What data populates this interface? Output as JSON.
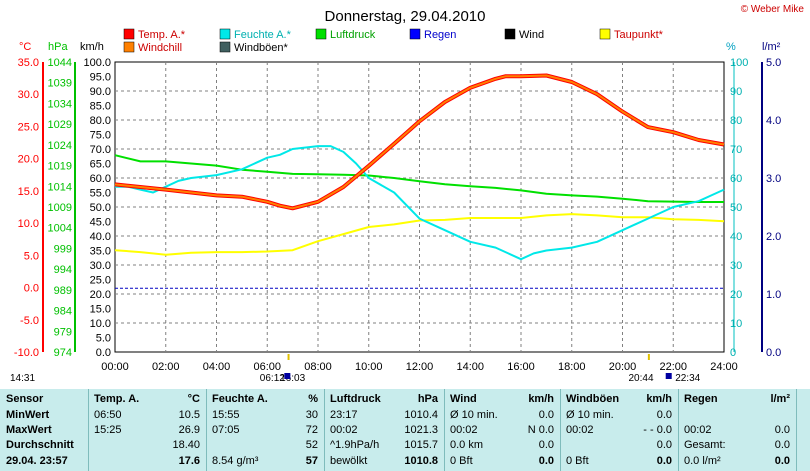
{
  "credit": "© Weber Mike",
  "chart_data": {
    "type": "line",
    "title": "Donnerstag, 29.04.2010",
    "x_ticks": [
      "00:00",
      "02:00",
      "04:00",
      "06:00",
      "08:00",
      "10:00",
      "12:00",
      "14:00",
      "16:00",
      "18:00",
      "20:00",
      "22:00",
      "24:00"
    ],
    "axes": {
      "celsius": {
        "unit": "°C",
        "color": "#ff0000",
        "ticks": [
          "35.0",
          "30.0",
          "25.0",
          "20.0",
          "15.0",
          "10.0",
          "5.0",
          "0.0",
          "-5.0",
          "-10.0"
        ]
      },
      "hpa": {
        "unit": "hPa",
        "color": "#00c000",
        "ticks": [
          "1044",
          "1039",
          "1034",
          "1029",
          "1024",
          "1019",
          "1014",
          "1009",
          "1004",
          "999",
          "994",
          "989",
          "984",
          "979",
          "974"
        ]
      },
      "kmh": {
        "unit": "km/h",
        "color": "#000000",
        "ticks": [
          "100.0",
          "95.0",
          "90.0",
          "85.0",
          "80.0",
          "75.0",
          "70.0",
          "65.0",
          "60.0",
          "55.0",
          "50.0",
          "45.0",
          "40.0",
          "35.0",
          "30.0",
          "25.0",
          "20.0",
          "15.0",
          "10.0",
          "5.0",
          "0.0"
        ],
        "ylim": [
          0,
          100
        ]
      },
      "percent": {
        "unit": "%",
        "color": "#00c0c0",
        "ticks": [
          "100",
          "90",
          "80",
          "70",
          "60",
          "50",
          "40",
          "30",
          "20",
          "10",
          "0"
        ]
      },
      "lm2": {
        "unit": "l/m²",
        "color": "#000080",
        "ticks": [
          "5.0",
          "4.0",
          "3.0",
          "2.0",
          "1.0",
          "0.0"
        ]
      }
    },
    "legend": [
      {
        "name": "Temp. A.*",
        "color": "#ff0000"
      },
      {
        "name": "Feuchte A.*",
        "color": "#00e8e8"
      },
      {
        "name": "Luftdruck",
        "color": "#00e000"
      },
      {
        "name": "Regen",
        "color": "#0000ff"
      },
      {
        "name": "Wind",
        "color": "#000000"
      },
      {
        "name": "Taupunkt*",
        "color": "#ffff00"
      },
      {
        "name": "Windchill",
        "color": "#ff8000"
      },
      {
        "name": "Windböen*",
        "color": "#406060"
      }
    ],
    "series": [
      {
        "name": "Temp. A.*",
        "axis": "celsius",
        "color": "#ff0000",
        "width": 4,
        "x": [
          0,
          2,
          4,
          5,
          6,
          6.5,
          7,
          8,
          9,
          10,
          11,
          12,
          13,
          14,
          15,
          15.4,
          16,
          17,
          18,
          19,
          20,
          21,
          22,
          23,
          24
        ],
        "y": [
          16.0,
          15.2,
          14.3,
          14.1,
          13.3,
          12.7,
          12.3,
          13.3,
          15.6,
          18.9,
          22.3,
          25.8,
          28.8,
          31.0,
          32.4,
          32.8,
          32.8,
          32.9,
          31.9,
          30.0,
          27.3,
          24.9,
          24.1,
          22.9,
          22.2
        ]
      },
      {
        "name": "Windchill",
        "axis": "celsius",
        "color": "#ff8000",
        "width": 2,
        "x": [
          0,
          2,
          4,
          5,
          6,
          6.5,
          7,
          8,
          9,
          10,
          11,
          12,
          13,
          14,
          15,
          15.4,
          16,
          17,
          18,
          19,
          20,
          21,
          22,
          23,
          24
        ],
        "y": [
          16.0,
          15.2,
          14.3,
          14.1,
          13.3,
          12.7,
          12.3,
          13.3,
          15.6,
          18.9,
          22.3,
          25.8,
          28.8,
          31.0,
          32.4,
          32.8,
          32.8,
          32.9,
          31.9,
          30.0,
          27.3,
          24.9,
          24.1,
          22.9,
          22.2
        ]
      },
      {
        "name": "Feuchte A.*",
        "axis": "percent",
        "color": "#00e8e8",
        "width": 2,
        "x": [
          0,
          0.5,
          1,
          1.5,
          2,
          2.5,
          3,
          4,
          5,
          6,
          6.5,
          7,
          8,
          8.5,
          9,
          9.5,
          10,
          11,
          12,
          13,
          14,
          15,
          15.5,
          16,
          16.5,
          17,
          18,
          19,
          20,
          21,
          22,
          23,
          23.5,
          24
        ],
        "y": [
          57,
          57,
          56,
          55,
          57,
          59,
          60,
          61,
          63,
          67,
          68,
          70,
          71,
          71,
          69,
          65,
          60,
          55,
          46,
          42,
          38,
          36,
          34,
          32,
          34,
          35,
          36,
          38,
          42,
          46,
          50,
          52,
          54,
          56
        ]
      },
      {
        "name": "Luftdruck",
        "axis": "hpa",
        "color": "#00e000",
        "width": 2,
        "x": [
          0,
          1,
          2,
          3,
          4,
          5,
          6,
          7,
          8,
          9,
          10,
          11,
          12,
          13,
          14,
          15,
          16,
          17,
          18,
          19,
          20,
          21,
          22,
          23,
          24
        ],
        "y": [
          1021.5,
          1020.0,
          1020.0,
          1019.5,
          1019.0,
          1018.0,
          1017.5,
          1017.0,
          1016.9,
          1016.8,
          1016.6,
          1016.0,
          1015.2,
          1014.5,
          1014.0,
          1013.6,
          1013.0,
          1012.2,
          1011.8,
          1011.5,
          1011.0,
          1010.4,
          1010.3,
          1010.2,
          1010.2
        ]
      },
      {
        "name": "Taupunkt*",
        "axis": "celsius",
        "color": "#ffff00",
        "width": 2,
        "x": [
          0,
          1,
          2,
          3,
          4,
          5,
          6,
          7,
          8,
          9,
          10,
          11,
          12,
          13,
          14,
          15,
          16,
          17,
          18,
          19,
          20,
          21,
          22,
          23,
          24
        ],
        "y": [
          5.8,
          5.5,
          5.1,
          5.4,
          5.5,
          5.5,
          5.6,
          5.8,
          7.2,
          8.3,
          9.4,
          9.8,
          10.4,
          10.5,
          10.8,
          10.8,
          10.8,
          11.2,
          11.4,
          11.2,
          10.9,
          10.9,
          10.6,
          10.5,
          10.3
        ]
      }
    ],
    "reference_line": {
      "name": "Regen",
      "axis": "kmh",
      "value": 22,
      "color": "#0000c0"
    },
    "below_axis": [
      {
        "text": "06:12",
        "x": 6.2
      },
      {
        "text": "16:03",
        "x": 7.0
      },
      {
        "text": "20:44",
        "x": 20.73
      },
      {
        "text": "22:34",
        "x": 22.57
      }
    ],
    "left_time": "14:31"
  },
  "table": {
    "headers": [
      "Sensor",
      "Temp. A.",
      "°C",
      "Feuchte A.",
      "%",
      "Luftdruck",
      "hPa",
      "Wind",
      "km/h",
      "Windböen",
      "km/h",
      "Regen",
      "l/m²"
    ],
    "rows": {
      "min": [
        "MinWert",
        "06:50",
        "10.5",
        "15:55",
        "30",
        "23:17",
        "1010.4",
        "Ø 10 min.",
        "0.0",
        "Ø 10 min.",
        "0.0",
        "",
        ""
      ],
      "max": [
        "MaxWert",
        "15:25",
        "26.9",
        "07:05",
        "72",
        "00:02",
        "1021.3",
        "00:02",
        "N 0.0",
        "00:02",
        "- - 0.0",
        "00:02",
        "0.0"
      ],
      "avg": [
        "Durchschnitt",
        "",
        "18.40",
        "",
        "52",
        "^1.9hPa/h",
        "1015.7",
        "0.0 km",
        "0.0",
        "",
        "0.0",
        "Gesamt:",
        "0.0"
      ],
      "cur": [
        "29.04. 23:57",
        "",
        "17.6",
        "8.54 g/m³",
        "57",
        "bewölkt",
        "1010.8",
        "0 Bft",
        "0.0",
        "0 Bft",
        "0.0",
        "0.0 l/m²",
        "0.0"
      ]
    }
  }
}
